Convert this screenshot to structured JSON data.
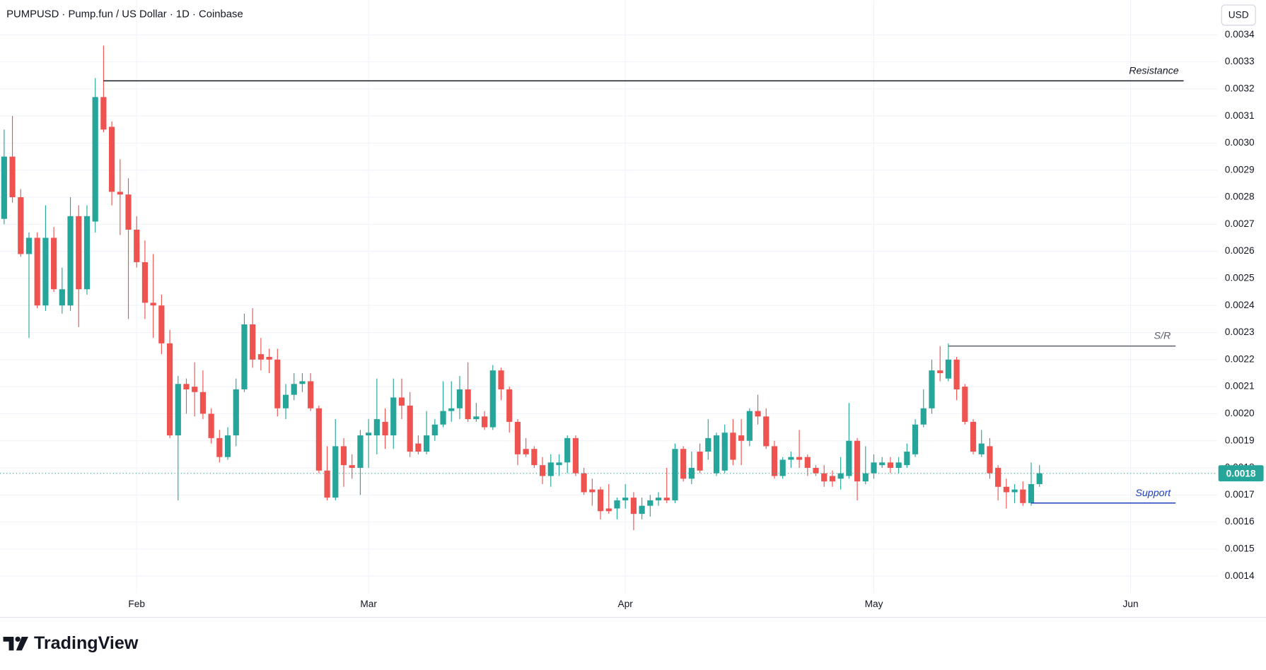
{
  "chart_data": {
    "type": "candlestick",
    "title": "PUMPUSD · Pump.fun / US Dollar · 1D · Coinbase",
    "currency": "USD",
    "brand": "TradingView",
    "categories": [
      null,
      null,
      null,
      null,
      null,
      null,
      null,
      null,
      null,
      null,
      null,
      null,
      null,
      null,
      null,
      null,
      "Feb",
      null,
      null,
      null,
      null,
      null,
      null,
      null,
      null,
      null,
      null,
      null,
      null,
      null,
      null,
      null,
      null,
      null,
      null,
      null,
      null,
      null,
      null,
      null,
      null,
      null,
      null,
      null,
      "Mar",
      null,
      null,
      null,
      null,
      null,
      null,
      null,
      null,
      null,
      null,
      null,
      null,
      null,
      null,
      null,
      null,
      null,
      null,
      null,
      null,
      null,
      null,
      null,
      null,
      null,
      null,
      null,
      null,
      null,
      null,
      "Apr",
      null,
      null,
      null,
      null,
      null,
      null,
      null,
      null,
      null,
      null,
      null,
      null,
      null,
      null,
      null,
      null,
      null,
      null,
      null,
      null,
      null,
      null,
      null,
      null,
      null,
      null,
      null,
      null,
      null,
      "May",
      null,
      null,
      null,
      null,
      null,
      null,
      null,
      null,
      null,
      null,
      null,
      null,
      null,
      null,
      null,
      null,
      null,
      null,
      null,
      null,
      null,
      null,
      null,
      null,
      null,
      null,
      null,
      null,
      null,
      null,
      "Jun",
      null,
      null,
      null,
      null,
      null,
      null,
      null,
      null,
      null,
      null
    ],
    "open": [
      0.00272,
      0.00295,
      0.0028,
      0.00259,
      0.00265,
      0.0024,
      0.00265,
      0.0024,
      0.0024,
      0.00273,
      0.00246,
      0.00271,
      0.00317,
      0.00306,
      0.00282,
      0.00281,
      0.00268,
      0.00256,
      0.00241,
      0.0024,
      0.00226,
      0.00192,
      0.00211,
      0.0021,
      0.00208,
      0.002,
      0.00191,
      0.00184,
      0.00192,
      0.00209,
      0.00233,
      0.00222,
      0.00221,
      0.0022,
      0.00202,
      0.00207,
      0.00211,
      0.00212,
      0.00202,
      0.00179,
      0.00169,
      0.00188,
      0.00181,
      0.0018,
      0.00192,
      0.00192,
      0.00197,
      0.00192,
      0.00206,
      0.00203,
      0.00189,
      0.00186,
      0.00192,
      0.00196,
      0.00201,
      0.00202,
      0.00209,
      0.00198,
      0.00199,
      0.00195,
      0.00216,
      0.00209,
      0.00197,
      0.00187,
      0.00187,
      0.00181,
      0.00177,
      0.00181,
      0.00182,
      0.00191,
      0.00178,
      0.00172,
      0.00172,
      0.00165,
      0.00165,
      0.00168,
      0.00169,
      0.00163,
      0.00166,
      0.00168,
      0.00169,
      0.00168,
      0.00187,
      0.00176,
      0.00186,
      0.00186,
      0.00178,
      0.00179,
      0.00193,
      0.00192,
      0.0019,
      0.00201,
      0.00199,
      0.00188,
      0.00177,
      0.00183,
      0.00184,
      0.00184,
      0.0018,
      0.00178,
      0.00177,
      0.00176,
      0.00177,
      0.0019,
      0.00175,
      0.00178,
      0.00181,
      0.00182,
      0.0018,
      0.00181,
      0.00185,
      0.00196,
      0.00202,
      0.00216,
      0.00213,
      0.0022,
      0.0021,
      0.00197,
      0.00185,
      0.00188,
      0.0018,
      0.00173,
      0.00171,
      0.00172,
      0.00167,
      0.00174,
      null,
      null,
      null,
      null,
      null,
      null,
      null,
      null,
      null,
      null,
      null,
      null,
      null,
      null,
      null,
      null,
      null,
      null,
      null,
      null,
      null
    ],
    "high": [
      0.00305,
      0.0031,
      0.00283,
      0.00267,
      0.00267,
      0.00277,
      0.00269,
      0.00254,
      0.0028,
      0.00277,
      0.00277,
      0.00324,
      0.00336,
      0.00308,
      0.00294,
      0.00287,
      0.00273,
      0.00264,
      0.00259,
      0.00244,
      0.00231,
      0.00214,
      0.00213,
      0.00219,
      0.00216,
      0.00202,
      0.00194,
      0.00195,
      0.00213,
      0.00237,
      0.00239,
      0.00228,
      0.00224,
      0.00224,
      0.00211,
      0.00215,
      0.00215,
      0.00215,
      0.00203,
      0.00188,
      0.00198,
      0.00191,
      0.00185,
      0.00194,
      0.00198,
      0.00213,
      0.00202,
      0.00213,
      0.00213,
      0.00208,
      0.00192,
      0.00201,
      0.00198,
      0.00212,
      0.00212,
      0.00214,
      0.00219,
      0.00204,
      0.00201,
      0.00218,
      0.00217,
      0.0021,
      0.00198,
      0.00191,
      0.00188,
      0.00184,
      0.00185,
      0.00185,
      0.00192,
      0.00192,
      0.0018,
      0.00176,
      0.00173,
      0.00174,
      0.00169,
      0.00174,
      0.00171,
      0.00169,
      0.0017,
      0.00171,
      0.0018,
      0.00189,
      0.00188,
      0.00186,
      0.00189,
      0.00198,
      0.00193,
      0.00196,
      0.00198,
      0.00198,
      0.00202,
      0.00207,
      0.00202,
      0.0019,
      0.00184,
      0.00186,
      0.00194,
      0.00185,
      0.00181,
      0.00181,
      0.00179,
      0.00184,
      0.00204,
      0.00191,
      0.00188,
      0.00185,
      0.00184,
      0.00184,
      0.00184,
      0.00189,
      0.00198,
      0.00209,
      0.0022,
      0.00225,
      0.00226,
      0.00221,
      0.00211,
      0.00198,
      0.00194,
      0.00191,
      0.00181,
      0.00176,
      0.00174,
      0.00175,
      0.00182,
      0.00181,
      null,
      null,
      null,
      null,
      null,
      null,
      null,
      null,
      null,
      null,
      null,
      null,
      null,
      null,
      null,
      null,
      null,
      null,
      null,
      null,
      null
    ],
    "low": [
      0.0027,
      0.00278,
      0.00258,
      0.00228,
      0.00239,
      0.00238,
      0.00245,
      0.00237,
      0.00238,
      0.00232,
      0.00244,
      0.00267,
      0.00304,
      0.00277,
      0.00266,
      0.00235,
      0.00254,
      0.00235,
      0.00228,
      0.00222,
      0.00191,
      0.00168,
      0.002,
      0.00199,
      0.00198,
      0.00189,
      0.00182,
      0.00183,
      0.00188,
      0.00208,
      0.00217,
      0.00216,
      0.00215,
      0.00199,
      0.00198,
      0.00205,
      0.00208,
      0.00201,
      0.00178,
      0.00168,
      0.00168,
      0.00173,
      0.00176,
      0.0017,
      0.0018,
      0.00185,
      0.00187,
      0.00187,
      0.00198,
      0.00184,
      0.00185,
      0.00185,
      0.0019,
      0.00195,
      0.00197,
      0.00198,
      0.00197,
      0.00197,
      0.00194,
      0.00194,
      0.00205,
      0.00193,
      0.00181,
      0.00184,
      0.0018,
      0.00174,
      0.00173,
      0.00177,
      0.00178,
      0.00177,
      0.0017,
      0.00166,
      0.00161,
      0.00163,
      0.00161,
      0.00165,
      0.00157,
      0.00161,
      0.00162,
      0.00166,
      0.00167,
      0.00167,
      0.00175,
      0.00174,
      0.00178,
      0.00183,
      0.00177,
      0.00178,
      0.00181,
      0.00181,
      0.00188,
      0.00196,
      0.00187,
      0.00176,
      0.00176,
      0.0018,
      0.0018,
      0.00177,
      0.00177,
      0.00173,
      0.00173,
      0.00172,
      0.00176,
      0.00168,
      0.00174,
      0.00176,
      0.0018,
      0.00178,
      0.00178,
      0.0018,
      0.00184,
      0.00195,
      0.002,
      0.00212,
      0.00212,
      0.00205,
      0.00196,
      0.00185,
      0.00184,
      0.00176,
      0.00168,
      0.00165,
      0.00167,
      0.00166,
      0.00166,
      0.00173,
      null,
      null,
      null,
      null,
      null,
      null,
      null,
      null,
      null,
      null,
      null,
      null,
      null,
      null,
      null,
      null,
      null,
      null,
      null,
      null,
      null
    ],
    "close": [
      0.00295,
      0.0028,
      0.00259,
      0.00265,
      0.0024,
      0.00265,
      0.00246,
      0.00246,
      0.00273,
      0.00246,
      0.00273,
      0.00317,
      0.00305,
      0.00282,
      0.00281,
      0.00268,
      0.00256,
      0.00241,
      0.0024,
      0.00226,
      0.00192,
      0.00211,
      0.00209,
      0.00208,
      0.002,
      0.00191,
      0.00184,
      0.00192,
      0.00209,
      0.00233,
      0.0022,
      0.0022,
      0.0022,
      0.00202,
      0.00207,
      0.00211,
      0.00212,
      0.00202,
      0.00179,
      0.00169,
      0.00188,
      0.00181,
      0.0018,
      0.00192,
      0.00193,
      0.00198,
      0.00192,
      0.00206,
      0.00203,
      0.00186,
      0.00186,
      0.00192,
      0.00196,
      0.00201,
      0.00202,
      0.00209,
      0.00198,
      0.00199,
      0.00195,
      0.00216,
      0.00209,
      0.00197,
      0.00185,
      0.00185,
      0.00181,
      0.00177,
      0.00182,
      0.00182,
      0.00191,
      0.00178,
      0.00171,
      0.00171,
      0.00164,
      0.00164,
      0.00168,
      0.00169,
      0.00163,
      0.00166,
      0.00168,
      0.00169,
      0.00168,
      0.00187,
      0.00176,
      0.0018,
      0.00179,
      0.00191,
      0.00192,
      0.00193,
      0.00183,
      0.0019,
      0.00201,
      0.00199,
      0.00188,
      0.00177,
      0.00183,
      0.00184,
      0.00183,
      0.0018,
      0.00178,
      0.00175,
      0.00175,
      0.00178,
      0.0019,
      0.00175,
      0.00178,
      0.00182,
      0.00182,
      0.0018,
      0.00182,
      0.00186,
      0.00196,
      0.00202,
      0.00216,
      0.00215,
      0.0022,
      0.00209,
      0.00197,
      0.00186,
      0.00189,
      0.00178,
      0.00173,
      0.00171,
      0.00172,
      0.00167,
      0.00174,
      0.00178,
      null,
      null,
      null,
      null,
      null,
      null,
      null,
      null,
      null,
      null,
      null,
      null,
      null,
      null,
      null,
      null,
      null,
      null,
      null,
      null,
      null
    ],
    "up_color": "#26a69a",
    "down_color": "#ef5350",
    "last_value_label": "0.0018",
    "ylim": [
      0.001337,
      0.003528
    ],
    "yticks": [
      0.0014,
      0.0015,
      0.0016,
      0.0017,
      0.0018,
      0.0019,
      {
        "value": 0.002,
        "label": "0.0020"
      },
      0.0021,
      0.0022,
      0.0023,
      0.0024,
      0.0025,
      0.0026,
      0.0027,
      0.0028,
      0.0029,
      {
        "value": 0.003,
        "label": "0.0030"
      },
      0.0031,
      0.0032,
      0.0033,
      0.0034
    ],
    "grid": true,
    "annotations": [
      {
        "label": "Resistance",
        "value": 0.00323,
        "start": 12,
        "color": "#131722"
      },
      {
        "label": "S/R",
        "value": 0.00225,
        "start": 114,
        "color": "#5d606b"
      },
      {
        "label": "Support",
        "value": 0.00167,
        "start": 124,
        "color": "#1e3fbf"
      }
    ]
  }
}
